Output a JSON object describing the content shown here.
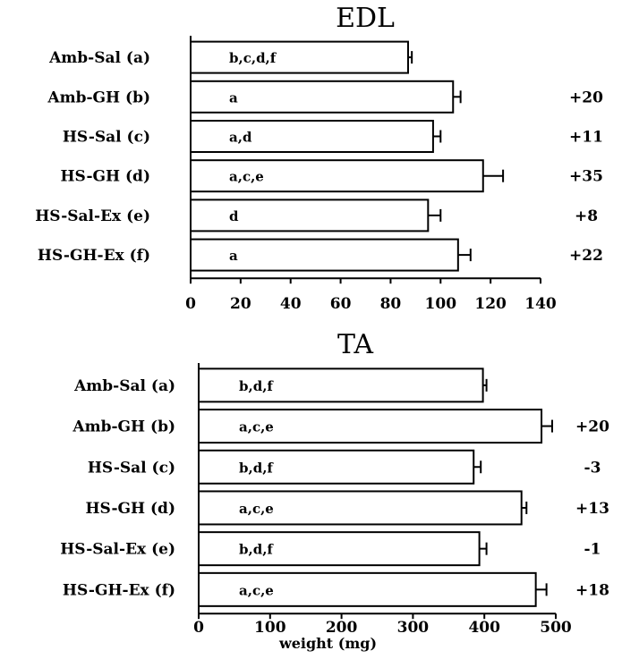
{
  "chart_data": [
    {
      "type": "bar",
      "orientation": "horizontal",
      "title": "EDL",
      "xlabel": "",
      "xlim": [
        0,
        140
      ],
      "xticks": [
        0,
        20,
        40,
        60,
        80,
        100,
        120,
        140
      ],
      "categories": [
        "Amb-Sal (a)",
        "Amb-GH (b)",
        "HS-Sal (c)",
        "HS-GH (d)",
        "HS-Sal-Ex (e)",
        "HS-GH-Ex (f)"
      ],
      "values": [
        87,
        105,
        97,
        117,
        95,
        107
      ],
      "errors": [
        1.5,
        3,
        3,
        8,
        5,
        5
      ],
      "annotations": [
        "b,c,d,f",
        "a",
        "a,d",
        "a,c,e",
        "d",
        "a"
      ],
      "percent_change": [
        "",
        "+20",
        "+11",
        "+35",
        "+8",
        "+22"
      ]
    },
    {
      "type": "bar",
      "orientation": "horizontal",
      "title": "TA",
      "xlabel": "weight (mg)",
      "xlim": [
        0,
        500
      ],
      "xticks": [
        0,
        100,
        200,
        300,
        400,
        500
      ],
      "categories": [
        "Amb-Sal (a)",
        "Amb-GH (b)",
        "HS-Sal (c)",
        "HS-GH (d)",
        "HS-Sal-Ex (e)",
        "HS-GH-Ex (f)"
      ],
      "values": [
        398,
        480,
        385,
        452,
        393,
        472
      ],
      "errors": [
        5,
        15,
        10,
        7,
        10,
        15
      ],
      "annotations": [
        "b,d,f",
        "a,c,e",
        "b,d,f",
        "a,c,e",
        "b,d,f",
        "a,c,e"
      ],
      "percent_change": [
        "",
        "+20",
        "-3",
        "+13",
        "-1",
        "+18"
      ]
    }
  ]
}
